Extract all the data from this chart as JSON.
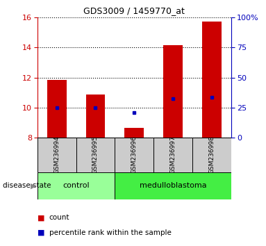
{
  "title": "GDS3009 / 1459770_at",
  "samples": [
    "GSM236994",
    "GSM236995",
    "GSM236996",
    "GSM236997",
    "GSM236998"
  ],
  "red_values": [
    11.85,
    10.85,
    8.65,
    14.15,
    15.7
  ],
  "blue_values": [
    10.0,
    10.0,
    9.65,
    10.6,
    10.7
  ],
  "ylim_left": [
    8,
    16
  ],
  "ylim_right": [
    0,
    100
  ],
  "yticks_left": [
    8,
    10,
    12,
    14,
    16
  ],
  "yticks_right": [
    0,
    25,
    50,
    75,
    100
  ],
  "groups": [
    {
      "label": "control",
      "samples": [
        0,
        1
      ],
      "color": "#99ff99"
    },
    {
      "label": "medulloblastoma",
      "samples": [
        2,
        3,
        4
      ],
      "color": "#44ee44"
    }
  ],
  "bar_width": 0.5,
  "red_color": "#cc0000",
  "blue_color": "#0000bb",
  "left_tick_color": "#cc0000",
  "right_tick_color": "#0000bb",
  "bg_color": "#ffffff",
  "sample_box_color": "#cccccc",
  "disease_state_label": "disease state",
  "legend_count": "count",
  "legend_percentile": "percentile rank within the sample"
}
